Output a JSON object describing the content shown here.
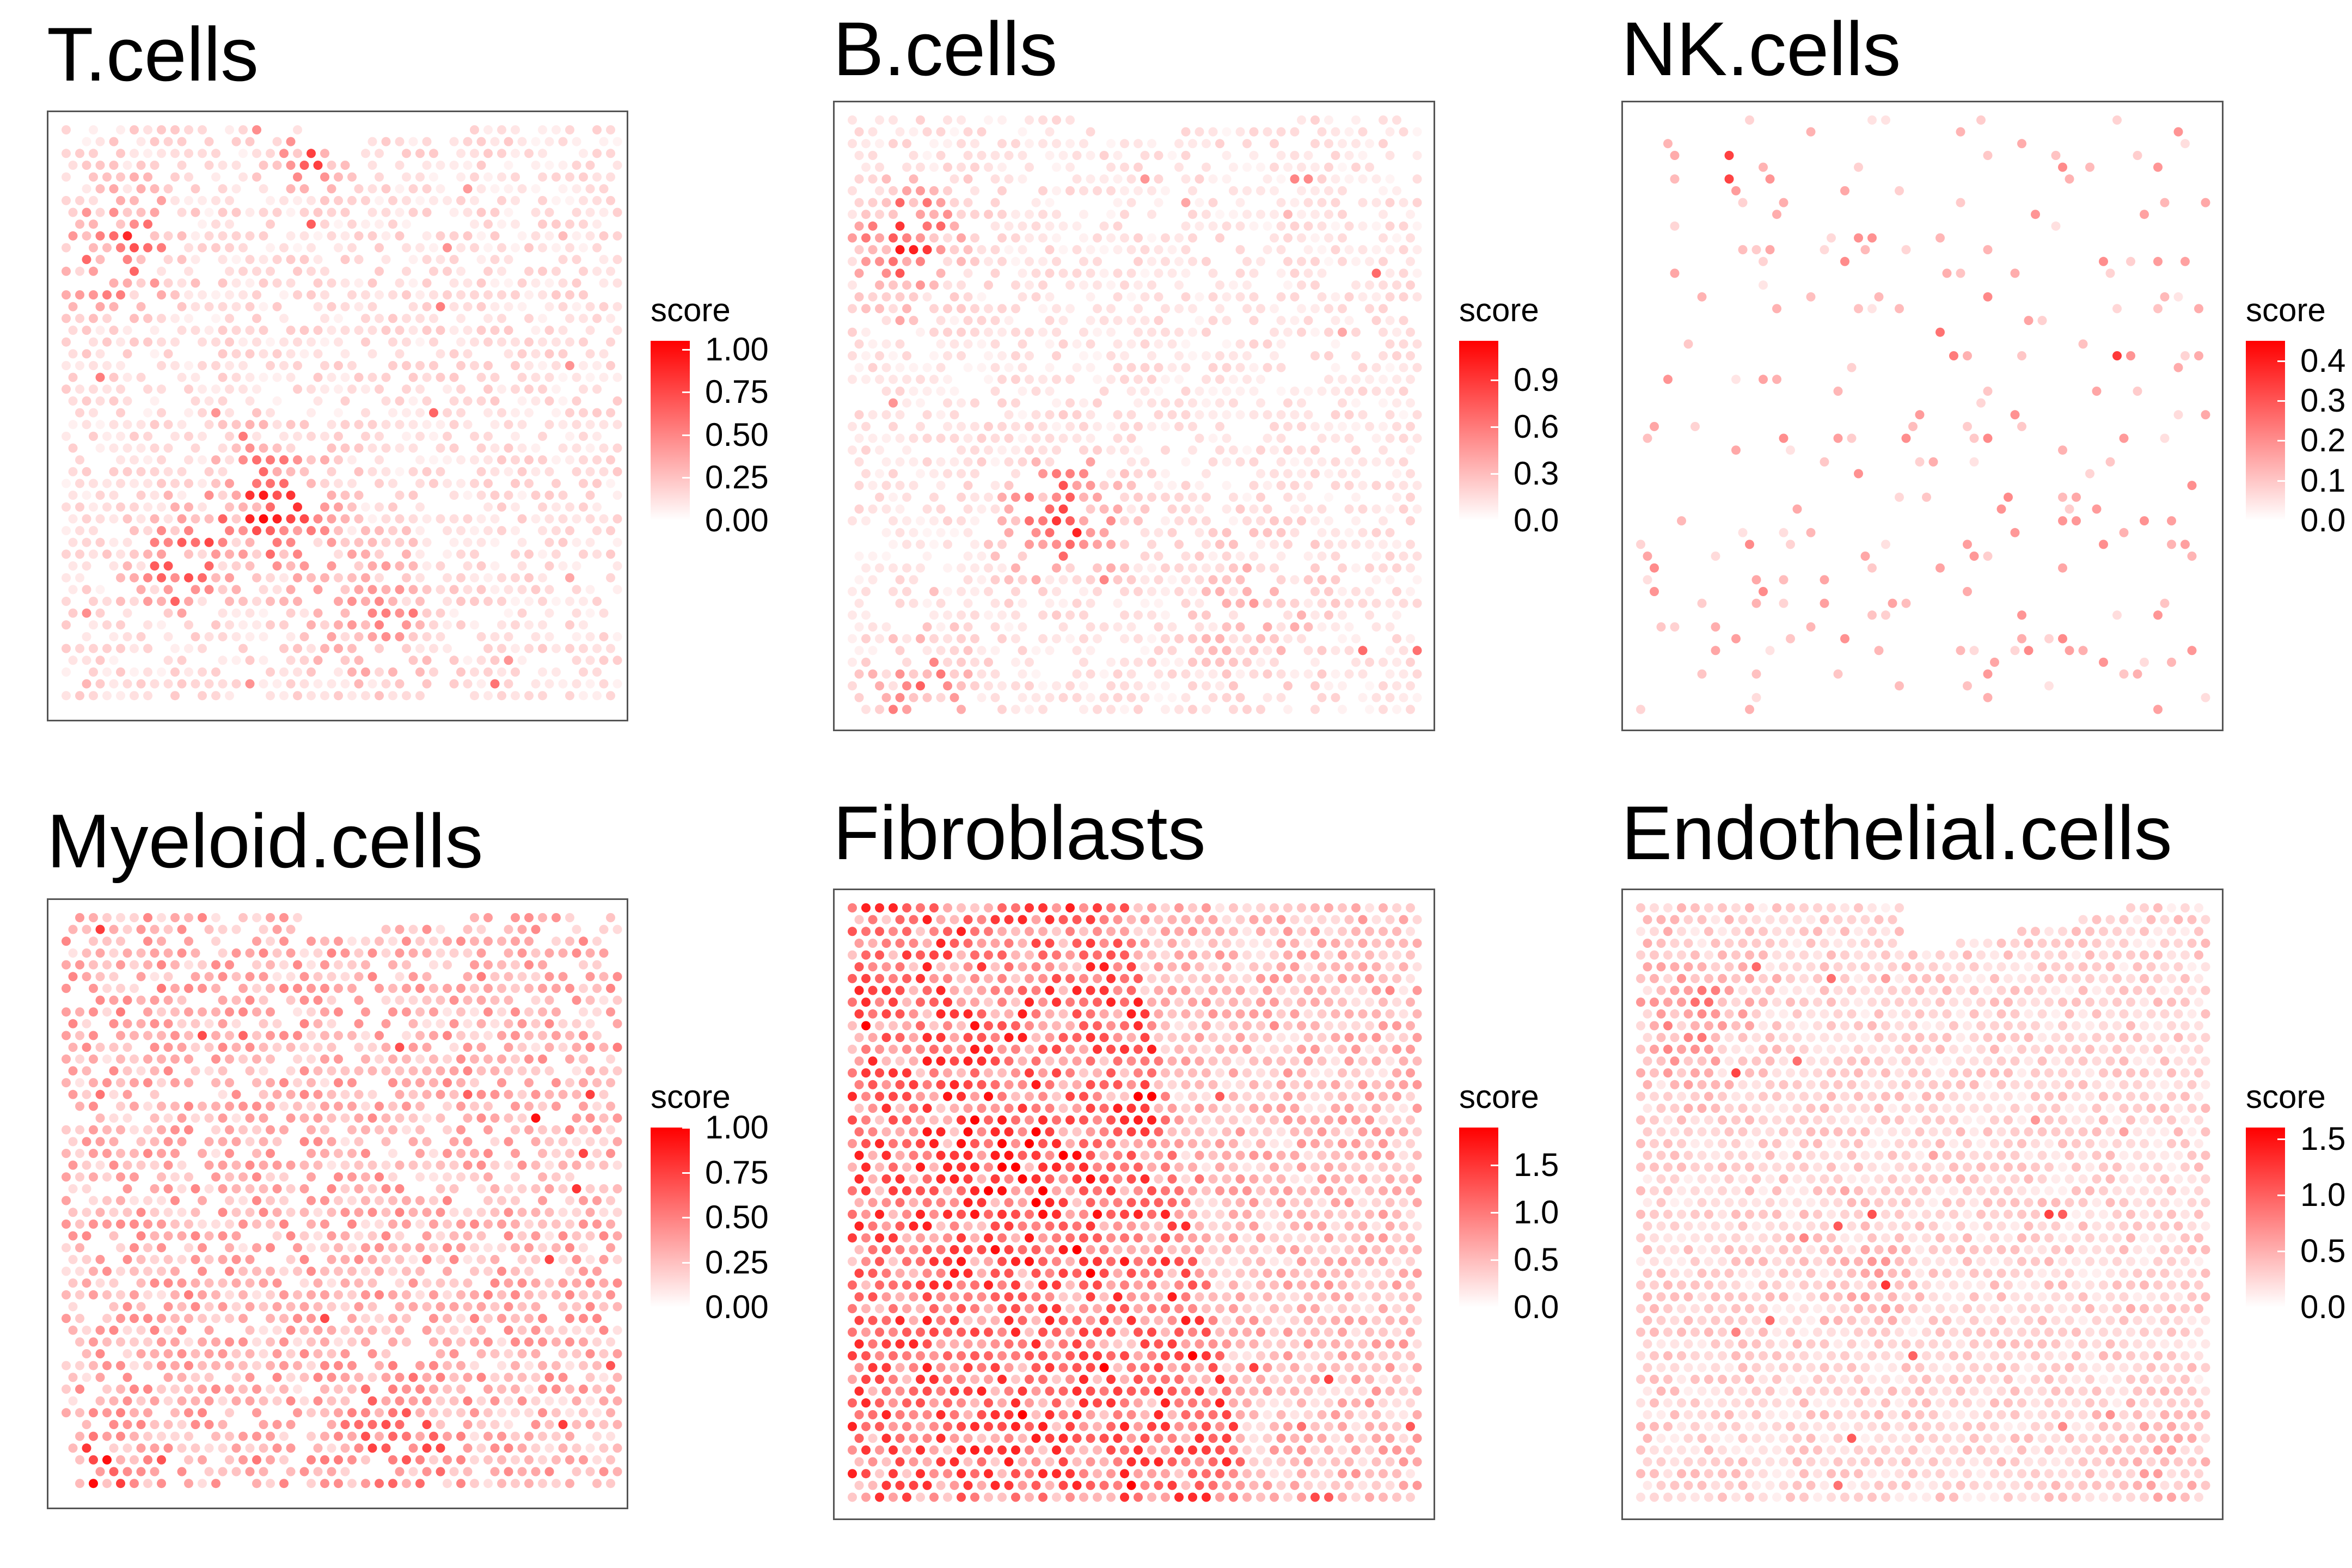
{
  "chart_data": [
    {
      "type": "scatter",
      "title": "T.cells",
      "legend_title": "score",
      "color_low": "#FFFFFF",
      "color_high": "#FF0000",
      "score_range": [
        0,
        1.05
      ],
      "ticks": [
        {
          "value": 0.0,
          "label": "0.00"
        },
        {
          "value": 0.25,
          "label": "0.25"
        },
        {
          "value": 0.5,
          "label": "0.50"
        },
        {
          "value": 0.75,
          "label": "0.75"
        },
        {
          "value": 1.0,
          "label": "1.00"
        }
      ],
      "density": 0.78,
      "base_score": 0.14,
      "cutout": {
        "x": [
          0.44,
          0.99
        ],
        "y": [
          0.0,
          0.06
        ]
      },
      "hotspots": [
        {
          "x": 0.38,
          "y": 0.64,
          "r": 0.09,
          "amp": 0.55
        },
        {
          "x": 0.12,
          "y": 0.22,
          "r": 0.09,
          "amp": 0.45
        },
        {
          "x": 0.22,
          "y": 0.74,
          "r": 0.07,
          "amp": 0.4
        },
        {
          "x": 0.45,
          "y": 0.08,
          "r": 0.05,
          "amp": 0.45
        },
        {
          "x": 0.55,
          "y": 0.82,
          "r": 0.1,
          "amp": 0.25
        }
      ]
    },
    {
      "type": "scatter",
      "title": "B.cells",
      "legend_title": "score",
      "color_low": "#FFFFFF",
      "color_high": "#FF0000",
      "score_range": [
        0,
        1.15
      ],
      "ticks": [
        {
          "value": 0.0,
          "label": "0.0"
        },
        {
          "value": 0.3,
          "label": "0.3"
        },
        {
          "value": 0.6,
          "label": "0.6"
        },
        {
          "value": 0.9,
          "label": "0.9"
        }
      ],
      "density": 0.75,
      "base_score": 0.13,
      "cutout": {
        "x": [
          0.44,
          0.99
        ],
        "y": [
          0.0,
          0.06
        ]
      },
      "hotspots": [
        {
          "x": 0.12,
          "y": 0.22,
          "r": 0.08,
          "amp": 0.55
        },
        {
          "x": 0.38,
          "y": 0.66,
          "r": 0.09,
          "amp": 0.5
        },
        {
          "x": 0.15,
          "y": 0.94,
          "r": 0.08,
          "amp": 0.35
        },
        {
          "x": 0.7,
          "y": 0.8,
          "r": 0.1,
          "amp": 0.2
        }
      ]
    },
    {
      "type": "scatter",
      "title": "NK.cells",
      "legend_title": "score",
      "color_low": "#FFFFFF",
      "color_high": "#FF0000",
      "score_range": [
        0,
        0.45
      ],
      "ticks": [
        {
          "value": 0.0,
          "label": "0.0"
        },
        {
          "value": 0.1,
          "label": "0.1"
        },
        {
          "value": 0.2,
          "label": "0.2"
        },
        {
          "value": 0.3,
          "label": "0.3"
        },
        {
          "value": 0.4,
          "label": "0.4"
        }
      ],
      "density": 0.11,
      "base_score": 0.13,
      "cutout": {
        "x": [
          0.44,
          0.99
        ],
        "y": [
          0.0,
          0.0
        ]
      },
      "hotspots": [
        {
          "x": 0.55,
          "y": 0.35,
          "r": 0.04,
          "amp": 0.2
        },
        {
          "x": 0.2,
          "y": 0.1,
          "r": 0.05,
          "amp": 0.15
        }
      ]
    },
    {
      "type": "scatter",
      "title": "Myeloid.cells",
      "legend_title": "score",
      "color_low": "#FFFFFF",
      "color_high": "#FF0000",
      "score_range": [
        0,
        1.0
      ],
      "ticks": [
        {
          "value": 0.0,
          "label": "0.00"
        },
        {
          "value": 0.25,
          "label": "0.25"
        },
        {
          "value": 0.5,
          "label": "0.50"
        },
        {
          "value": 0.75,
          "label": "0.75"
        },
        {
          "value": 1.0,
          "label": "1.00"
        }
      ],
      "density": 0.86,
      "base_score": 0.3,
      "cutout": {
        "x": [
          0.44,
          0.99
        ],
        "y": [
          0.0,
          0.06
        ]
      },
      "hotspots": [
        {
          "x": 0.08,
          "y": 0.94,
          "r": 0.06,
          "amp": 0.4
        },
        {
          "x": 0.6,
          "y": 0.88,
          "r": 0.08,
          "amp": 0.25
        }
      ]
    },
    {
      "type": "scatter",
      "title": "Fibroblasts",
      "legend_title": "score",
      "color_low": "#FFFFFF",
      "color_high": "#FF0000",
      "score_range": [
        0,
        1.9
      ],
      "ticks": [
        {
          "value": 0.0,
          "label": "0.0"
        },
        {
          "value": 0.5,
          "label": "0.5"
        },
        {
          "value": 1.0,
          "label": "1.0"
        },
        {
          "value": 1.5,
          "label": "1.5"
        }
      ],
      "density": 1.0,
      "base_score": 0.55,
      "split": {
        "left_score": 1.05,
        "right_score": 0.5
      },
      "cutout": {
        "x": [
          0.49,
          0.99
        ],
        "y": [
          0.0,
          0.0
        ]
      },
      "hotspots": [
        {
          "x": 0.3,
          "y": 0.45,
          "r": 0.12,
          "amp": 0.25
        }
      ]
    },
    {
      "type": "scatter",
      "title": "Endothelial.cells",
      "legend_title": "score",
      "color_low": "#FFFFFF",
      "color_high": "#FF0000",
      "score_range": [
        0,
        1.6
      ],
      "ticks": [
        {
          "value": 0.0,
          "label": "0.0"
        },
        {
          "value": 0.5,
          "label": "0.5"
        },
        {
          "value": 1.0,
          "label": "1.0"
        },
        {
          "value": 1.5,
          "label": "1.5"
        }
      ],
      "density": 1.0,
      "base_score": 0.28,
      "cutout": {
        "x": [
          0.46,
          0.99
        ],
        "y": [
          0.0,
          0.1
        ]
      },
      "hotspots": [
        {
          "x": 0.12,
          "y": 0.2,
          "r": 0.1,
          "amp": 0.35
        },
        {
          "x": 0.4,
          "y": 0.62,
          "r": 0.06,
          "amp": 0.3
        },
        {
          "x": 0.9,
          "y": 0.9,
          "r": 0.08,
          "amp": 0.2
        }
      ]
    }
  ]
}
